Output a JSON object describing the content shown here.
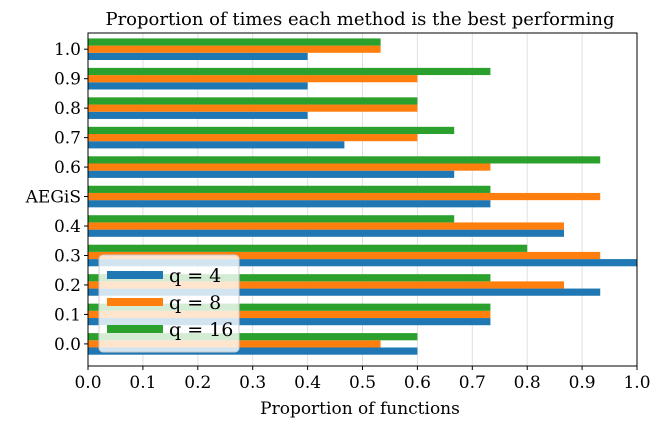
{
  "chart_data": {
    "type": "bar",
    "orientation": "horizontal",
    "title": "Proportion of times each method is the best performing",
    "xlabel": "Proportion of functions",
    "ylabel": "",
    "xlim": [
      0.0,
      1.0
    ],
    "xticks": [
      "0.0",
      "0.1",
      "0.2",
      "0.3",
      "0.4",
      "0.5",
      "0.6",
      "0.7",
      "0.8",
      "0.9",
      "1.0"
    ],
    "categories": [
      "0.0",
      "0.1",
      "0.2",
      "0.3",
      "0.4",
      "AEGiS",
      "0.6",
      "0.7",
      "0.8",
      "0.9",
      "1.0"
    ],
    "series": [
      {
        "name": "q = 4",
        "color": "#1f77b4",
        "values": [
          0.6,
          0.733,
          0.933,
          1.0,
          0.867,
          0.733,
          0.667,
          0.467,
          0.4,
          0.4,
          0.4
        ]
      },
      {
        "name": "q = 8",
        "color": "#ff7f0e",
        "values": [
          0.533,
          0.733,
          0.867,
          0.933,
          0.867,
          0.933,
          0.733,
          0.6,
          0.6,
          0.6,
          0.533
        ]
      },
      {
        "name": "q = 16",
        "color": "#2ca02c",
        "values": [
          0.6,
          0.733,
          0.733,
          0.8,
          0.667,
          0.733,
          0.933,
          0.667,
          0.6,
          0.733,
          0.533
        ]
      }
    ],
    "grid": "vertical",
    "legend_position": "lower-left"
  }
}
